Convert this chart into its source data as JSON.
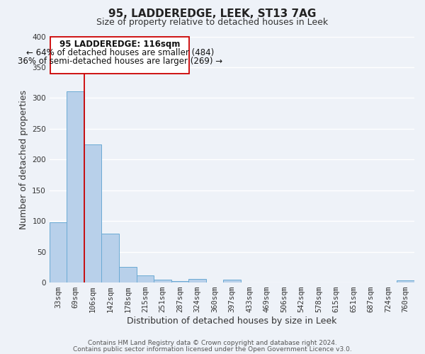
{
  "title": "95, LADDEREDGE, LEEK, ST13 7AG",
  "subtitle": "Size of property relative to detached houses in Leek",
  "xlabel": "Distribution of detached houses by size in Leek",
  "ylabel": "Number of detached properties",
  "footer_lines": [
    "Contains HM Land Registry data © Crown copyright and database right 2024.",
    "Contains public sector information licensed under the Open Government Licence v3.0."
  ],
  "bar_labels": [
    "33sqm",
    "69sqm",
    "106sqm",
    "142sqm",
    "178sqm",
    "215sqm",
    "251sqm",
    "287sqm",
    "324sqm",
    "360sqm",
    "397sqm",
    "433sqm",
    "469sqm",
    "506sqm",
    "542sqm",
    "578sqm",
    "615sqm",
    "651sqm",
    "687sqm",
    "724sqm",
    "760sqm"
  ],
  "bar_values": [
    98,
    311,
    224,
    80,
    25,
    12,
    5,
    2,
    6,
    0,
    5,
    0,
    0,
    0,
    0,
    0,
    0,
    0,
    0,
    0,
    3
  ],
  "bar_color": "#b8d0ea",
  "bar_edge_color": "#6aaad4",
  "ylim": [
    0,
    400
  ],
  "yticks": [
    0,
    50,
    100,
    150,
    200,
    250,
    300,
    350,
    400
  ],
  "vline_x": 1.5,
  "vline_label": "95 LADDEREDGE: 116sqm",
  "annotation_line1": "← 64% of detached houses are smaller (484)",
  "annotation_line2": "36% of semi-detached houses are larger (269) →",
  "vline_color": "#cc0000",
  "box_color": "#cc0000",
  "background_color": "#eef2f8",
  "plot_bg_color": "#eef2f8",
  "grid_color": "#ffffff",
  "title_fontsize": 11,
  "subtitle_fontsize": 9,
  "annotation_fontsize": 8.5,
  "tick_fontsize": 7.5,
  "label_fontsize": 9,
  "footer_fontsize": 6.5
}
